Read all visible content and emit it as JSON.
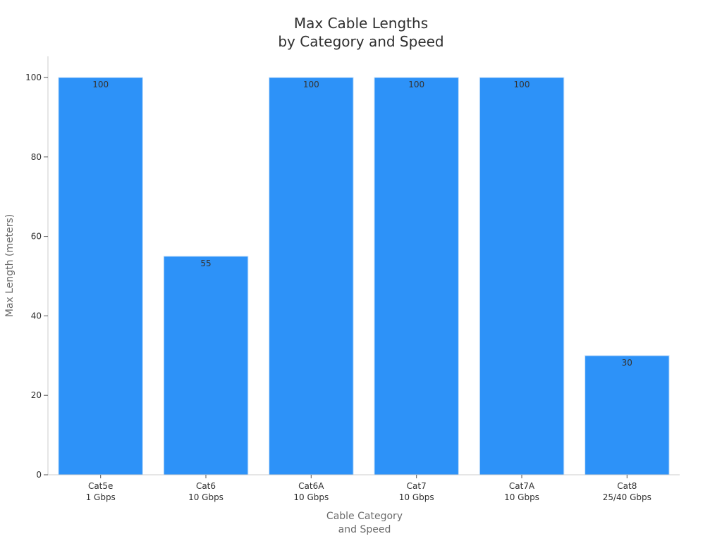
{
  "chart_data": {
    "type": "bar",
    "title_lines": [
      "Max Cable Lengths",
      "by Category and Speed"
    ],
    "xlabel_lines": [
      "Cable Category",
      "and Speed"
    ],
    "ylabel": "Max Length (meters)",
    "categories": [
      [
        "Cat5e",
        "1 Gbps"
      ],
      [
        "Cat6",
        "10 Gbps"
      ],
      [
        "Cat6A",
        "10 Gbps"
      ],
      [
        "Cat7",
        "10 Gbps"
      ],
      [
        "Cat7A",
        "10 Gbps"
      ],
      [
        "Cat8",
        "25/40 Gbps"
      ]
    ],
    "values": [
      100,
      55,
      100,
      100,
      100,
      30
    ],
    "data_labels": [
      "100",
      "55",
      "100",
      "100",
      "100",
      "30"
    ],
    "ylim": [
      0,
      105
    ],
    "yticks": [
      0,
      20,
      40,
      60,
      80,
      100
    ],
    "grid": false,
    "bar_color": "#2d92f8",
    "bar_edge_color": "#c9e2fb"
  }
}
